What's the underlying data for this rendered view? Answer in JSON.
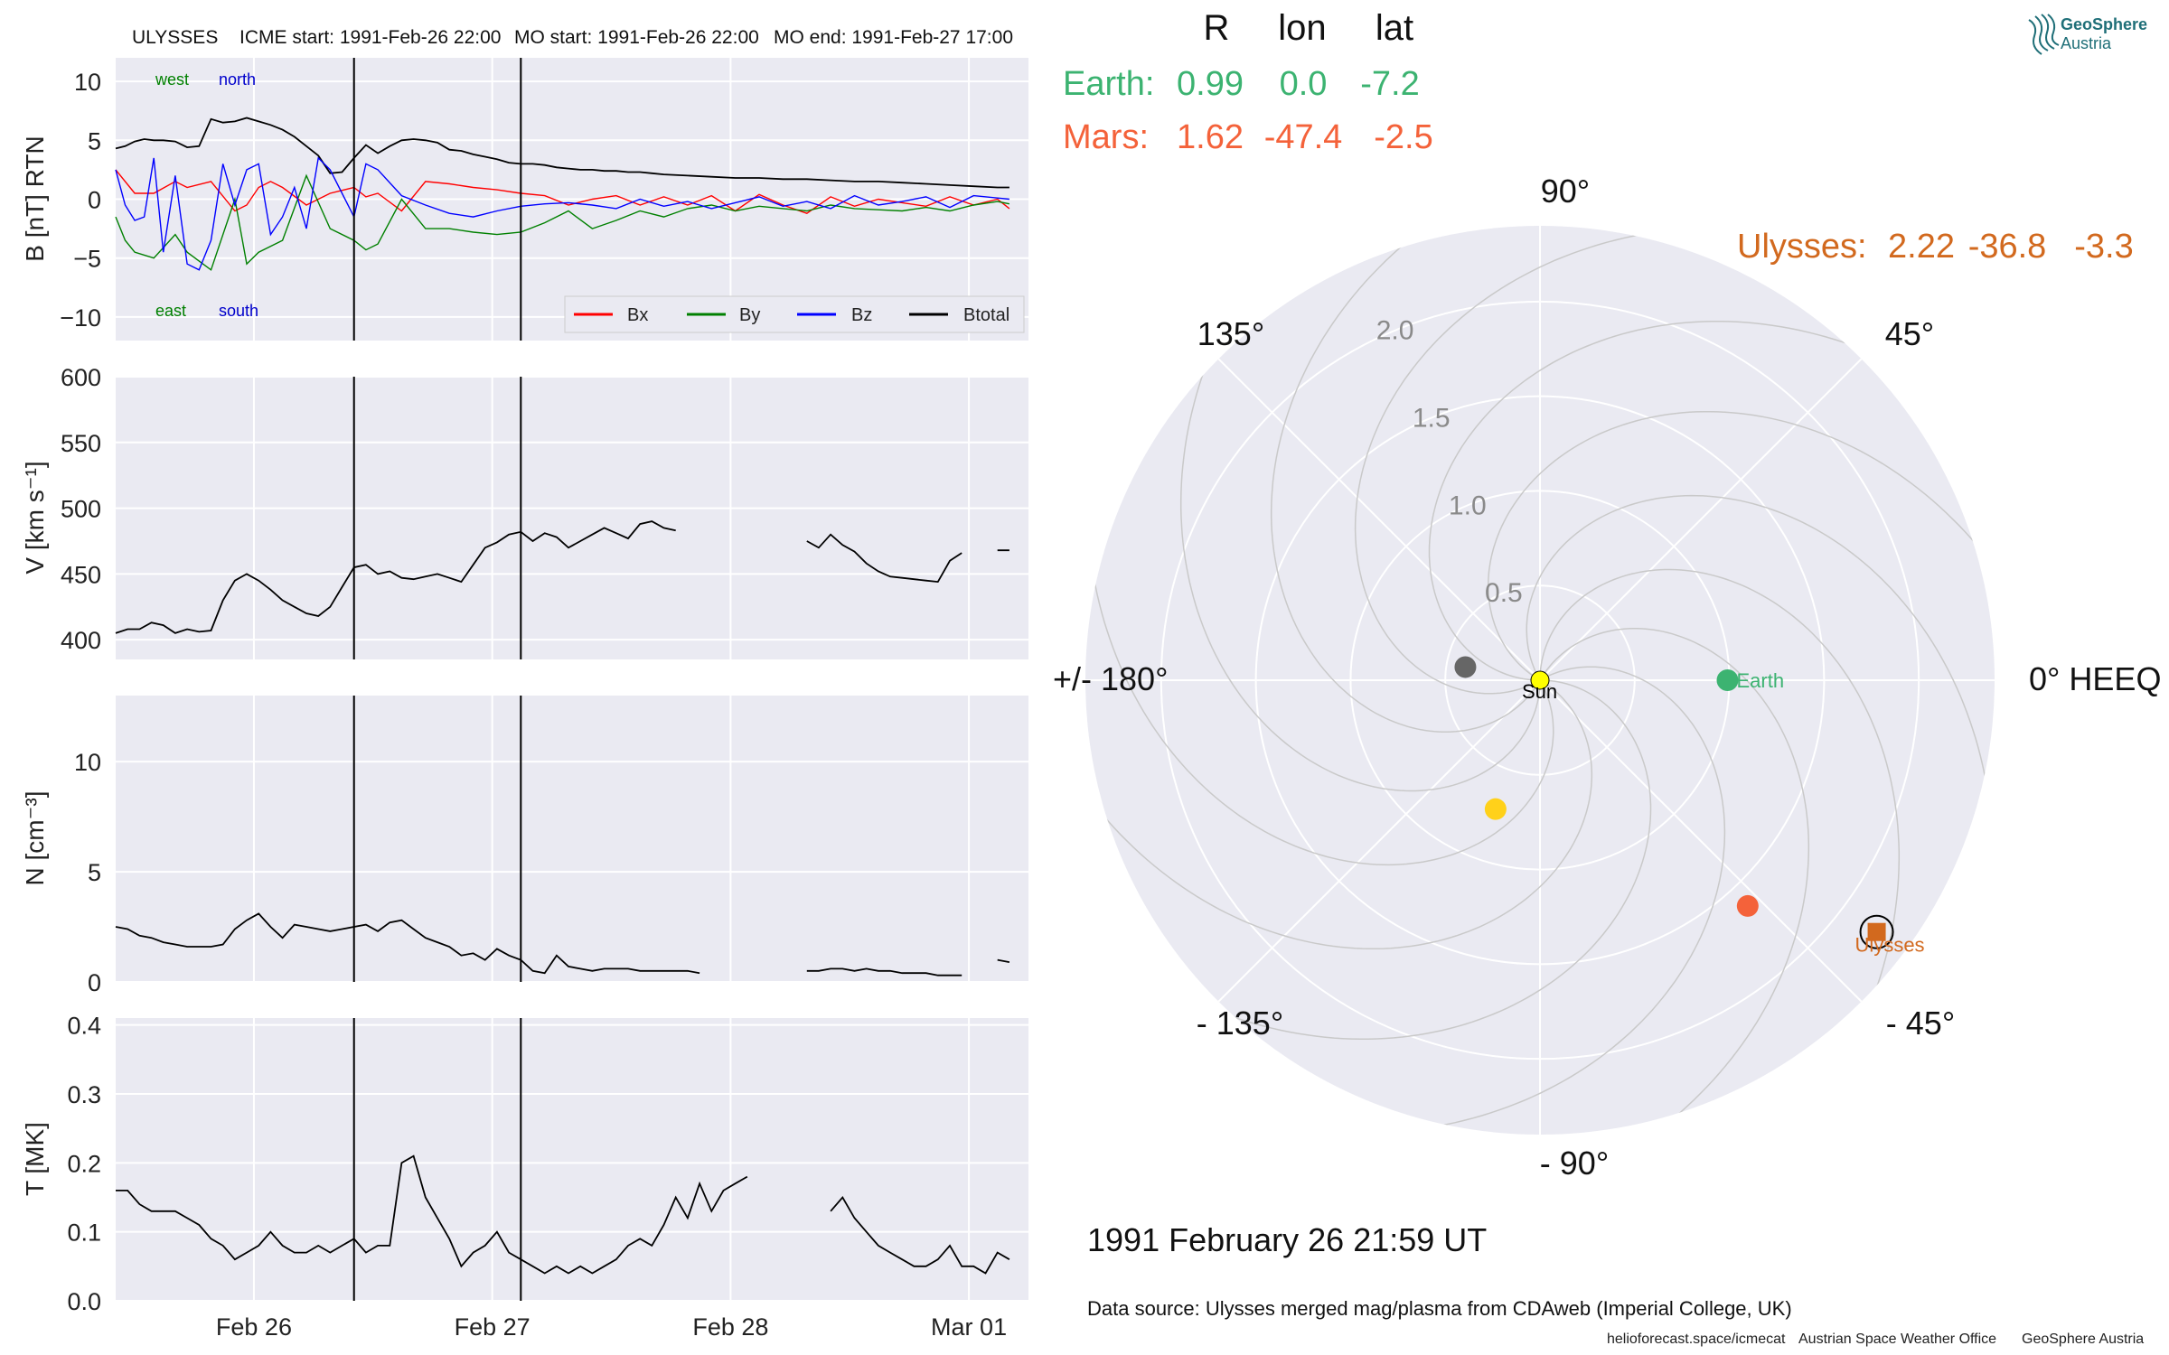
{
  "header": {
    "spacecraft": "ULYSSES",
    "icme_start": "ICME start: 1991-Feb-26 22:00",
    "mo_start": "MO start: 1991-Feb-26 22:00",
    "mo_end": "MO end: 1991-Feb-27 17:00"
  },
  "logo": {
    "line1": "GeoSphere",
    "line2": "Austria"
  },
  "colors": {
    "bx": "#ff0000",
    "by": "#008000",
    "bz": "#0000ff",
    "btotal": "#000000",
    "earth": "#3cb371",
    "mars": "#f4623a",
    "ulysses": "#d2691e",
    "venus": "#ffd11a",
    "mercury": "#666666",
    "sun": "#ffff00",
    "panel_bg": "#eaeaf2"
  },
  "chart_data": [
    {
      "type": "line",
      "panel": "B",
      "ylabel": "B [nT] RTN",
      "ylim": [
        -12,
        12
      ],
      "yticks": [
        10,
        5,
        0,
        -5,
        -10
      ],
      "xlim_days": [
        "1991-02-25 10:00",
        "1991-03-01 06:00"
      ],
      "legend": {
        "position": "bottom-right",
        "entries": [
          "Bx",
          "By",
          "Bz",
          "Btotal"
        ]
      },
      "annotations": {
        "west": "west",
        "north": "north",
        "east": "east",
        "south": "south"
      },
      "series": [
        {
          "name": "Btotal",
          "t": [
            0,
            0.04,
            0.08,
            0.12,
            0.16,
            0.2,
            0.25,
            0.3,
            0.35,
            0.4,
            0.45,
            0.5,
            0.55,
            0.6,
            0.65,
            0.7,
            0.75,
            0.8,
            0.85,
            0.9,
            0.95,
            1.0,
            1.05,
            1.1,
            1.15,
            1.2,
            1.25,
            1.3,
            1.35,
            1.4,
            1.45,
            1.5,
            1.55,
            1.6,
            1.65,
            1.7,
            1.75,
            1.8,
            1.85,
            1.9,
            1.95,
            2.0,
            2.05,
            2.1,
            2.15,
            2.2,
            2.25,
            2.3,
            2.4,
            2.5,
            2.6,
            2.7,
            2.8,
            2.9,
            3.0,
            3.1,
            3.2,
            3.3,
            3.4,
            3.5,
            3.6,
            3.7,
            3.75
          ],
          "values": [
            4.3,
            4.5,
            4.9,
            5.1,
            5.0,
            5.0,
            4.9,
            4.4,
            4.5,
            6.8,
            6.5,
            6.6,
            6.9,
            6.6,
            6.3,
            5.9,
            5.3,
            4.5,
            3.7,
            2.2,
            2.3,
            3.5,
            4.6,
            3.9,
            4.5,
            5.0,
            5.1,
            5.0,
            4.8,
            4.2,
            4.1,
            3.8,
            3.6,
            3.4,
            3.1,
            3.0,
            3.0,
            2.9,
            2.7,
            2.6,
            2.5,
            2.5,
            2.4,
            2.4,
            2.3,
            2.3,
            2.2,
            2.1,
            2.0,
            1.9,
            1.8,
            1.8,
            1.7,
            1.7,
            1.6,
            1.5,
            1.5,
            1.4,
            1.3,
            1.2,
            1.1,
            1.0,
            1.0
          ]
        },
        {
          "name": "Bx",
          "t": [
            0,
            0.08,
            0.16,
            0.25,
            0.3,
            0.4,
            0.5,
            0.55,
            0.6,
            0.65,
            0.7,
            0.8,
            0.9,
            1.0,
            1.05,
            1.1,
            1.2,
            1.3,
            1.4,
            1.5,
            1.6,
            1.7,
            1.8,
            1.9,
            2.0,
            2.1,
            2.2,
            2.3,
            2.4,
            2.5,
            2.6,
            2.7,
            2.8,
            2.9,
            3.0,
            3.1,
            3.2,
            3.3,
            3.4,
            3.5,
            3.6,
            3.7,
            3.75
          ],
          "values": [
            2.5,
            0.5,
            0.5,
            1.5,
            1.0,
            1.5,
            -1.0,
            -0.5,
            1.0,
            1.5,
            1.0,
            -0.5,
            0.5,
            1.0,
            0.2,
            0.5,
            -1.0,
            1.5,
            1.3,
            1.0,
            0.8,
            0.5,
            0.3,
            -0.5,
            0.0,
            0.3,
            -0.5,
            0.2,
            -0.5,
            0.3,
            -1.0,
            0.4,
            -0.5,
            -1.2,
            0.2,
            -0.6,
            0.0,
            -0.3,
            -0.6,
            0.2,
            -0.5,
            0.0,
            -0.8
          ]
        },
        {
          "name": "By",
          "t": [
            0,
            0.04,
            0.08,
            0.16,
            0.25,
            0.3,
            0.4,
            0.5,
            0.55,
            0.6,
            0.7,
            0.8,
            0.9,
            1.0,
            1.05,
            1.1,
            1.2,
            1.3,
            1.4,
            1.5,
            1.6,
            1.7,
            1.8,
            1.9,
            2.0,
            2.1,
            2.2,
            2.3,
            2.4,
            2.5,
            2.6,
            2.7,
            2.8,
            2.9,
            3.0,
            3.1,
            3.2,
            3.3,
            3.4,
            3.5,
            3.6,
            3.7,
            3.75
          ],
          "values": [
            -1.5,
            -3.5,
            -4.5,
            -5.0,
            -3.0,
            -4.5,
            -6.0,
            0.0,
            -5.5,
            -4.5,
            -3.5,
            2.0,
            -2.5,
            -3.5,
            -4.3,
            -3.8,
            0.0,
            -2.5,
            -2.5,
            -2.8,
            -3.0,
            -2.8,
            -2.0,
            -1.0,
            -2.5,
            -1.8,
            -1.0,
            -1.5,
            -0.8,
            -0.5,
            -1.0,
            -0.6,
            -0.8,
            -1.0,
            -0.5,
            -0.8,
            -0.9,
            -1.0,
            -0.7,
            -1.0,
            -0.5,
            -0.2,
            -0.4
          ]
        },
        {
          "name": "Bz",
          "t": [
            0,
            0.04,
            0.08,
            0.12,
            0.16,
            0.2,
            0.25,
            0.3,
            0.35,
            0.4,
            0.45,
            0.5,
            0.55,
            0.6,
            0.65,
            0.7,
            0.75,
            0.8,
            0.85,
            0.9,
            0.95,
            1.0,
            1.05,
            1.1,
            1.2,
            1.3,
            1.4,
            1.5,
            1.6,
            1.7,
            1.8,
            1.9,
            2.0,
            2.1,
            2.2,
            2.3,
            2.4,
            2.5,
            2.6,
            2.7,
            2.8,
            2.9,
            3.0,
            3.1,
            3.2,
            3.3,
            3.4,
            3.5,
            3.6,
            3.7,
            3.75
          ],
          "values": [
            2.5,
            -0.5,
            -1.8,
            -1.5,
            3.5,
            -4.5,
            2.0,
            -5.5,
            -6.0,
            -3.5,
            3.0,
            -0.5,
            2.5,
            3.0,
            -3.0,
            -1.5,
            1.0,
            -2.5,
            3.5,
            2.5,
            0.5,
            -1.5,
            3.0,
            2.5,
            0.3,
            -0.5,
            -1.2,
            -1.5,
            -1.0,
            -0.6,
            -0.4,
            -0.3,
            -0.5,
            -0.8,
            0.0,
            -0.6,
            -0.2,
            -0.8,
            -0.3,
            0.2,
            -0.6,
            -0.2,
            -0.8,
            0.3,
            -0.5,
            -0.2,
            0.2,
            -0.7,
            0.3,
            0.1,
            0.0
          ]
        }
      ]
    },
    {
      "type": "line",
      "panel": "V",
      "ylabel": "V [km s⁻¹]",
      "ylim": [
        385,
        600
      ],
      "yticks": [
        600,
        550,
        500,
        450,
        400
      ],
      "series": [
        {
          "name": "V",
          "t": [
            0,
            0.05,
            0.1,
            0.15,
            0.2,
            0.25,
            0.3,
            0.35,
            0.4,
            0.45,
            0.5,
            0.55,
            0.6,
            0.65,
            0.7,
            0.75,
            0.8,
            0.85,
            0.9,
            0.95,
            1.0,
            1.05,
            1.1,
            1.15,
            1.2,
            1.25,
            1.3,
            1.35,
            1.4,
            1.45,
            1.5,
            1.55,
            1.6,
            1.65,
            1.7,
            1.75,
            1.8,
            1.85,
            1.9,
            1.95,
            2.0,
            2.05,
            2.1,
            2.15,
            2.2,
            2.25,
            2.3,
            2.35,
            2.4,
            2.45,
            2.5,
            2.55,
            2.6,
            2.65,
            2.7,
            2.75,
            2.8,
            2.85,
            2.9,
            2.95,
            3.0,
            3.05,
            3.1,
            3.15,
            3.2,
            3.25,
            3.3,
            3.35,
            3.4,
            3.45,
            3.5,
            3.55,
            3.6,
            3.65,
            3.7,
            3.75
          ],
          "values": [
            405,
            408,
            408,
            413,
            411,
            405,
            408,
            406,
            407,
            430,
            445,
            450,
            445,
            438,
            430,
            425,
            420,
            418,
            425,
            440,
            455,
            457,
            450,
            452,
            447,
            446,
            448,
            450,
            447,
            444,
            457,
            470,
            474,
            480,
            482,
            475,
            481,
            478,
            470,
            475,
            480,
            485,
            481,
            477,
            488,
            490,
            485,
            483,
            null,
            null,
            null,
            null,
            null,
            null,
            null,
            null,
            null,
            null,
            475,
            470,
            480,
            472,
            467,
            458,
            452,
            448,
            447,
            446,
            445,
            444,
            460,
            466,
            null,
            null,
            468,
            468
          ]
        }
      ]
    },
    {
      "type": "line",
      "panel": "N",
      "ylabel": "N [cm⁻³]",
      "ylim": [
        0,
        13
      ],
      "yticks": [
        10,
        5,
        0
      ],
      "series": [
        {
          "name": "N",
          "t": [
            0,
            0.05,
            0.1,
            0.15,
            0.2,
            0.25,
            0.3,
            0.35,
            0.4,
            0.45,
            0.5,
            0.55,
            0.6,
            0.65,
            0.7,
            0.75,
            0.8,
            0.85,
            0.9,
            0.95,
            1.0,
            1.05,
            1.1,
            1.15,
            1.2,
            1.25,
            1.3,
            1.35,
            1.4,
            1.45,
            1.5,
            1.55,
            1.6,
            1.65,
            1.7,
            1.75,
            1.8,
            1.85,
            1.9,
            1.95,
            2.0,
            2.05,
            2.1,
            2.15,
            2.2,
            2.25,
            2.3,
            2.35,
            2.4,
            2.45,
            2.5,
            2.55,
            2.6,
            2.65,
            2.7,
            2.75,
            2.8,
            2.85,
            2.9,
            2.95,
            3.0,
            3.05,
            3.1,
            3.15,
            3.2,
            3.25,
            3.3,
            3.35,
            3.4,
            3.45,
            3.5,
            3.55,
            3.6,
            3.65,
            3.7,
            3.75
          ],
          "values": [
            2.5,
            2.4,
            2.1,
            2.0,
            1.8,
            1.7,
            1.6,
            1.6,
            1.6,
            1.7,
            2.4,
            2.8,
            3.1,
            2.5,
            2.0,
            2.6,
            2.5,
            2.4,
            2.3,
            2.4,
            2.5,
            2.6,
            2.3,
            2.7,
            2.8,
            2.4,
            2.0,
            1.8,
            1.6,
            1.2,
            1.3,
            1.0,
            1.5,
            1.2,
            1.0,
            0.5,
            0.4,
            1.2,
            0.7,
            0.6,
            0.5,
            0.6,
            0.6,
            0.6,
            0.5,
            0.5,
            0.5,
            0.5,
            0.5,
            0.4,
            null,
            null,
            null,
            null,
            null,
            null,
            null,
            null,
            0.5,
            0.5,
            0.6,
            0.6,
            0.5,
            0.6,
            0.5,
            0.5,
            0.4,
            0.4,
            0.4,
            0.3,
            0.3,
            0.3,
            null,
            null,
            1.0,
            0.9
          ]
        }
      ]
    },
    {
      "type": "line",
      "panel": "T",
      "ylabel": "T [MK]",
      "ylim": [
        0,
        0.41
      ],
      "yticks": [
        0.4,
        0.3,
        0.2,
        0.1,
        0.0
      ],
      "xticks": [
        "Feb 26",
        "Feb 27",
        "Feb 28",
        "Mar 01"
      ],
      "series": [
        {
          "name": "T",
          "t": [
            0,
            0.05,
            0.1,
            0.15,
            0.2,
            0.25,
            0.3,
            0.35,
            0.4,
            0.45,
            0.5,
            0.55,
            0.6,
            0.65,
            0.7,
            0.75,
            0.8,
            0.85,
            0.9,
            0.95,
            1.0,
            1.05,
            1.1,
            1.15,
            1.2,
            1.25,
            1.3,
            1.35,
            1.4,
            1.45,
            1.5,
            1.55,
            1.6,
            1.65,
            1.7,
            1.75,
            1.8,
            1.85,
            1.9,
            1.95,
            2.0,
            2.05,
            2.1,
            2.15,
            2.2,
            2.25,
            2.3,
            2.35,
            2.4,
            2.45,
            2.5,
            2.55,
            2.6,
            2.65,
            2.7,
            2.75,
            2.8,
            2.85,
            2.9,
            2.95,
            3.0,
            3.05,
            3.1,
            3.15,
            3.2,
            3.25,
            3.3,
            3.35,
            3.4,
            3.45,
            3.5,
            3.55,
            3.6,
            3.65,
            3.7,
            3.75
          ],
          "values": [
            0.16,
            0.16,
            0.14,
            0.13,
            0.13,
            0.13,
            0.12,
            0.11,
            0.09,
            0.08,
            0.06,
            0.07,
            0.08,
            0.1,
            0.08,
            0.07,
            0.07,
            0.08,
            0.07,
            0.08,
            0.09,
            0.07,
            0.08,
            0.08,
            0.2,
            0.21,
            0.15,
            0.12,
            0.09,
            0.05,
            0.07,
            0.08,
            0.1,
            0.07,
            0.06,
            0.05,
            0.04,
            0.05,
            0.04,
            0.05,
            0.04,
            0.05,
            0.06,
            0.08,
            0.09,
            0.08,
            0.11,
            0.15,
            0.12,
            0.17,
            0.13,
            0.16,
            0.17,
            0.18,
            null,
            null,
            null,
            null,
            null,
            null,
            0.13,
            0.15,
            0.12,
            0.1,
            0.08,
            0.07,
            0.06,
            0.05,
            0.05,
            0.06,
            0.08,
            0.05,
            0.05,
            0.04,
            0.07,
            0.06
          ]
        }
      ]
    },
    {
      "type": "scatter",
      "panel": "polar",
      "projection": "polar",
      "rlim": [
        0,
        2.4
      ],
      "rticks": [
        "0.5",
        "1.0",
        "1.5",
        "2.0"
      ],
      "angle_labels": {
        "a90": "90°",
        "a45": "45°",
        "a0": "0° HEEQ",
        "am45": "- 45°",
        "am90": "- 90°",
        "am135": "- 135°",
        "a180": "+/- 180°",
        "a135": "135°"
      },
      "table_header": {
        "r": "R",
        "lon": "lon",
        "lat": "lat"
      },
      "bodies": [
        {
          "name": "Earth:",
          "label": "Earth",
          "r": 0.99,
          "lon": 0.0,
          "lat": -7.2,
          "r_text": "0.99",
          "lon_text": "0.0",
          "lat_text": "-7.2"
        },
        {
          "name": "Mars:",
          "r": 1.62,
          "lon": -47.4,
          "lat": -2.5,
          "r_text": "1.62",
          "lon_text": "-47.4",
          "lat_text": "-2.5"
        },
        {
          "name": "Ulysses:",
          "label": "Ulysses",
          "r": 2.22,
          "lon": -36.8,
          "lat": -3.3,
          "r_text": "2.22",
          "lon_text": "-36.8",
          "lat_text": "-3.3"
        },
        {
          "label": "Sun",
          "r": 0.0,
          "lon": 0.0
        },
        {
          "r": 0.72,
          "lon": -109
        },
        {
          "r": 0.4,
          "lon": 170
        }
      ]
    }
  ],
  "timestamp": "1991 February 26  21:59 UT",
  "data_source": "Data source: Ulysses merged mag/plasma from CDAweb (Imperial College, UK)",
  "footer": {
    "site": "helioforecast.space/icmecat",
    "office": "Austrian Space Weather Office",
    "org": "GeoSphere Austria"
  }
}
